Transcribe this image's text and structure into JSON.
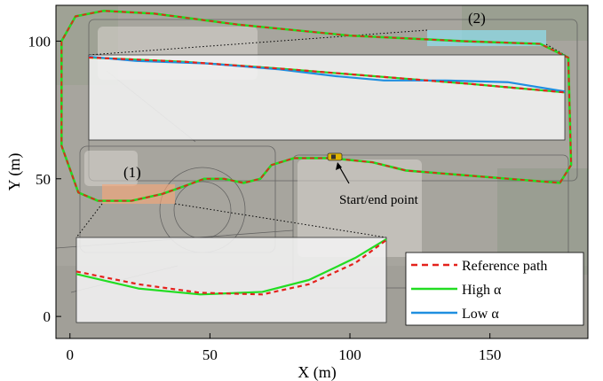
{
  "chart_data": {
    "type": "line",
    "xlabel": "X (m)",
    "ylabel": "Y (m)",
    "xlim": [
      -5,
      185
    ],
    "ylim": [
      -8,
      113
    ],
    "xticks": [
      0,
      50,
      100,
      150
    ],
    "yticks": [
      0,
      50,
      100
    ],
    "background": "aerial map of parking lot",
    "legend": {
      "placement": "bottom-right",
      "entries": [
        {
          "name": "Reference path",
          "color": "#e4221c",
          "style": "dashed"
        },
        {
          "name": "High α",
          "color": "#22dd22",
          "style": "solid"
        },
        {
          "name": "Low α",
          "color": "#1f8fe0",
          "style": "solid"
        }
      ]
    },
    "annotations": [
      {
        "text": "(1)",
        "region": "zoom region 1"
      },
      {
        "text": "(2)",
        "region": "zoom region 2"
      },
      {
        "text": "Start/end point",
        "x": 97,
        "y": 57
      }
    ],
    "track": {
      "name": "Reference path",
      "points": [
        [
          93,
          57.5
        ],
        [
          80,
          57.5
        ],
        [
          72,
          55
        ],
        [
          68,
          50
        ],
        [
          62,
          48.5
        ],
        [
          55,
          50
        ],
        [
          48,
          50
        ],
        [
          40,
          47
        ],
        [
          33,
          44.5
        ],
        [
          22,
          42
        ],
        [
          10,
          42
        ],
        [
          3,
          45
        ],
        [
          -3,
          62
        ],
        [
          -3,
          100
        ],
        [
          2,
          109
        ],
        [
          12,
          111
        ],
        [
          30,
          110
        ],
        [
          60,
          106
        ],
        [
          100,
          102
        ],
        [
          140,
          100
        ],
        [
          168,
          99
        ],
        [
          178,
          94
        ],
        [
          179,
          55
        ],
        [
          175,
          48.5
        ],
        [
          120,
          53
        ],
        [
          108,
          56
        ],
        [
          93,
          57.5
        ]
      ]
    },
    "zoom_panels": [
      {
        "label": "(1)",
        "series": [
          {
            "name": "Reference path",
            "points": [
              [
                0,
                0.6
              ],
              [
                20,
                0.45
              ],
              [
                40,
                0.35
              ],
              [
                60,
                0.33
              ],
              [
                75,
                0.45
              ],
              [
                90,
                0.7
              ],
              [
                100,
                0.97
              ]
            ]
          },
          {
            "name": "High α",
            "points": [
              [
                0,
                0.57
              ],
              [
                20,
                0.4
              ],
              [
                40,
                0.33
              ],
              [
                60,
                0.36
              ],
              [
                75,
                0.5
              ],
              [
                90,
                0.76
              ],
              [
                100,
                0.98
              ]
            ]
          }
        ]
      },
      {
        "label": "(2)",
        "series": [
          {
            "name": "Reference path",
            "points": [
              [
                0,
                0.97
              ],
              [
                20,
                0.92
              ],
              [
                40,
                0.84
              ],
              [
                60,
                0.75
              ],
              [
                80,
                0.66
              ],
              [
                100,
                0.56
              ]
            ]
          },
          {
            "name": "High α",
            "points": [
              [
                0,
                0.97
              ],
              [
                20,
                0.92
              ],
              [
                40,
                0.84
              ],
              [
                60,
                0.75
              ],
              [
                80,
                0.66
              ],
              [
                100,
                0.56
              ]
            ]
          },
          {
            "name": "Low α",
            "points": [
              [
                0,
                0.98
              ],
              [
                10,
                0.93
              ],
              [
                25,
                0.9
              ],
              [
                40,
                0.83
              ],
              [
                52,
                0.75
              ],
              [
                62,
                0.7
              ],
              [
                75,
                0.7
              ],
              [
                88,
                0.68
              ],
              [
                100,
                0.57
              ]
            ]
          }
        ]
      }
    ]
  }
}
